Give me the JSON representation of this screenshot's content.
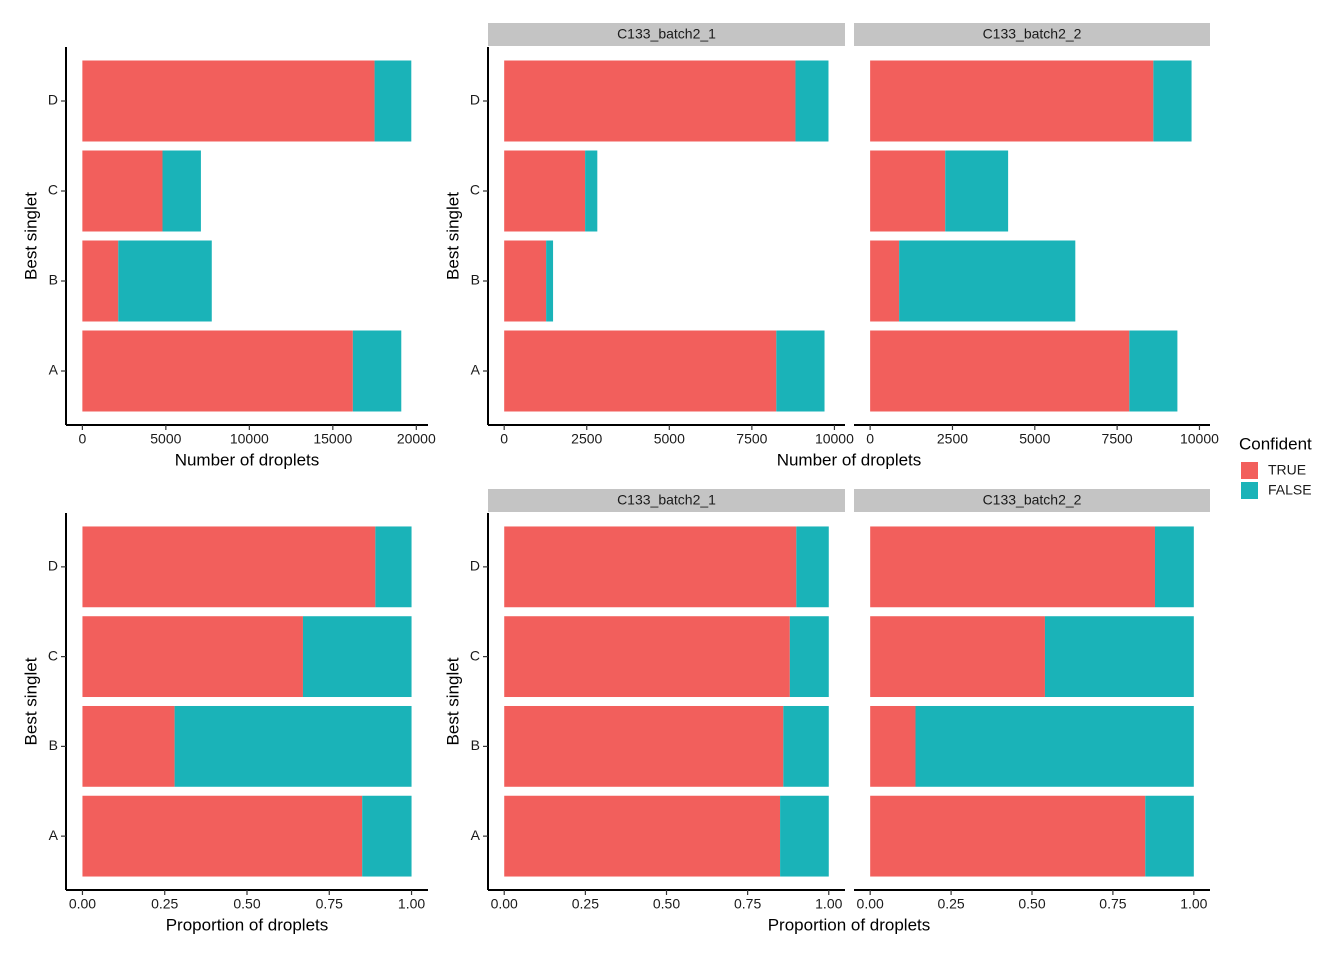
{
  "chart_data": [
    {
      "type": "bar",
      "stacked": true,
      "orientation": "horizontal",
      "x_label": "Number of droplets",
      "y_label": "Best singlet",
      "categories": [
        "A",
        "B",
        "C",
        "D"
      ],
      "series": [
        {
          "name": "TRUE",
          "color": "#F25F5C",
          "values": [
            16200,
            2150,
            4800,
            17500
          ]
        },
        {
          "name": "FALSE",
          "color": "#1AB3B8",
          "values": [
            2900,
            5600,
            2300,
            2200
          ]
        }
      ],
      "xlim": [
        -980,
        20700
      ],
      "xticks": [
        0,
        5000,
        10000,
        15000,
        20000
      ]
    },
    {
      "type": "bar",
      "stacked": true,
      "orientation": "horizontal",
      "x_label": "Number of droplets",
      "y_label": "Best singlet",
      "categories": [
        "A",
        "B",
        "C",
        "D"
      ],
      "facets": [
        {
          "title": "C133_batch2_1",
          "series": [
            {
              "name": "TRUE",
              "color": "#F25F5C",
              "values": [
                8240,
                1270,
                2450,
                8820
              ]
            },
            {
              "name": "FALSE",
              "color": "#1AB3B8",
              "values": [
                1460,
                210,
                370,
                1000
              ]
            }
          ]
        },
        {
          "title": "C133_batch2_2",
          "series": [
            {
              "name": "TRUE",
              "color": "#F25F5C",
              "values": [
                7870,
                880,
                2280,
                8600
              ]
            },
            {
              "name": "FALSE",
              "color": "#1AB3B8",
              "values": [
                1460,
                5350,
                1910,
                1160
              ]
            }
          ]
        }
      ],
      "xlim": [
        -490,
        10320
      ],
      "xticks": [
        0,
        2500,
        5000,
        7500,
        10000
      ]
    },
    {
      "type": "bar",
      "stacked": true,
      "orientation": "horizontal",
      "x_label": "Proportion of droplets",
      "y_label": "Best singlet",
      "categories": [
        "A",
        "B",
        "C",
        "D"
      ],
      "series": [
        {
          "name": "TRUE",
          "color": "#F25F5C",
          "values": [
            0.85,
            0.28,
            0.67,
            0.89
          ]
        },
        {
          "name": "FALSE",
          "color": "#1AB3B8",
          "values": [
            0.15,
            0.72,
            0.33,
            0.11
          ]
        }
      ],
      "xlim": [
        -0.05,
        1.05
      ],
      "xticks": [
        {
          "value": 0,
          "label": "0.00"
        },
        {
          "value": 0.25,
          "label": "0.25"
        },
        {
          "value": 0.5,
          "label": "0.50"
        },
        {
          "value": 0.75,
          "label": "0.75"
        },
        {
          "value": 1,
          "label": "1.00"
        }
      ]
    },
    {
      "type": "bar",
      "stacked": true,
      "orientation": "horizontal",
      "x_label": "Proportion of droplets",
      "y_label": "Best singlet",
      "categories": [
        "A",
        "B",
        "C",
        "D"
      ],
      "facets": [
        {
          "title": "C133_batch2_1",
          "series": [
            {
              "name": "TRUE",
              "color": "#F25F5C",
              "values": [
                0.85,
                0.86,
                0.88,
                0.9
              ]
            },
            {
              "name": "FALSE",
              "color": "#1AB3B8",
              "values": [
                0.15,
                0.14,
                0.12,
                0.1
              ]
            }
          ]
        },
        {
          "title": "C133_batch2_2",
          "series": [
            {
              "name": "TRUE",
              "color": "#F25F5C",
              "values": [
                0.85,
                0.14,
                0.54,
                0.88
              ]
            },
            {
              "name": "FALSE",
              "color": "#1AB3B8",
              "values": [
                0.15,
                0.86,
                0.46,
                0.12
              ]
            }
          ]
        }
      ],
      "xlim": [
        -0.05,
        1.05
      ],
      "xticks": [
        {
          "value": 0,
          "label": "0.00"
        },
        {
          "value": 0.25,
          "label": "0.25"
        },
        {
          "value": 0.5,
          "label": "0.50"
        },
        {
          "value": 0.75,
          "label": "0.75"
        },
        {
          "value": 1,
          "label": "1.00"
        }
      ]
    }
  ],
  "legend": {
    "title": "Confident",
    "position": "right"
  }
}
